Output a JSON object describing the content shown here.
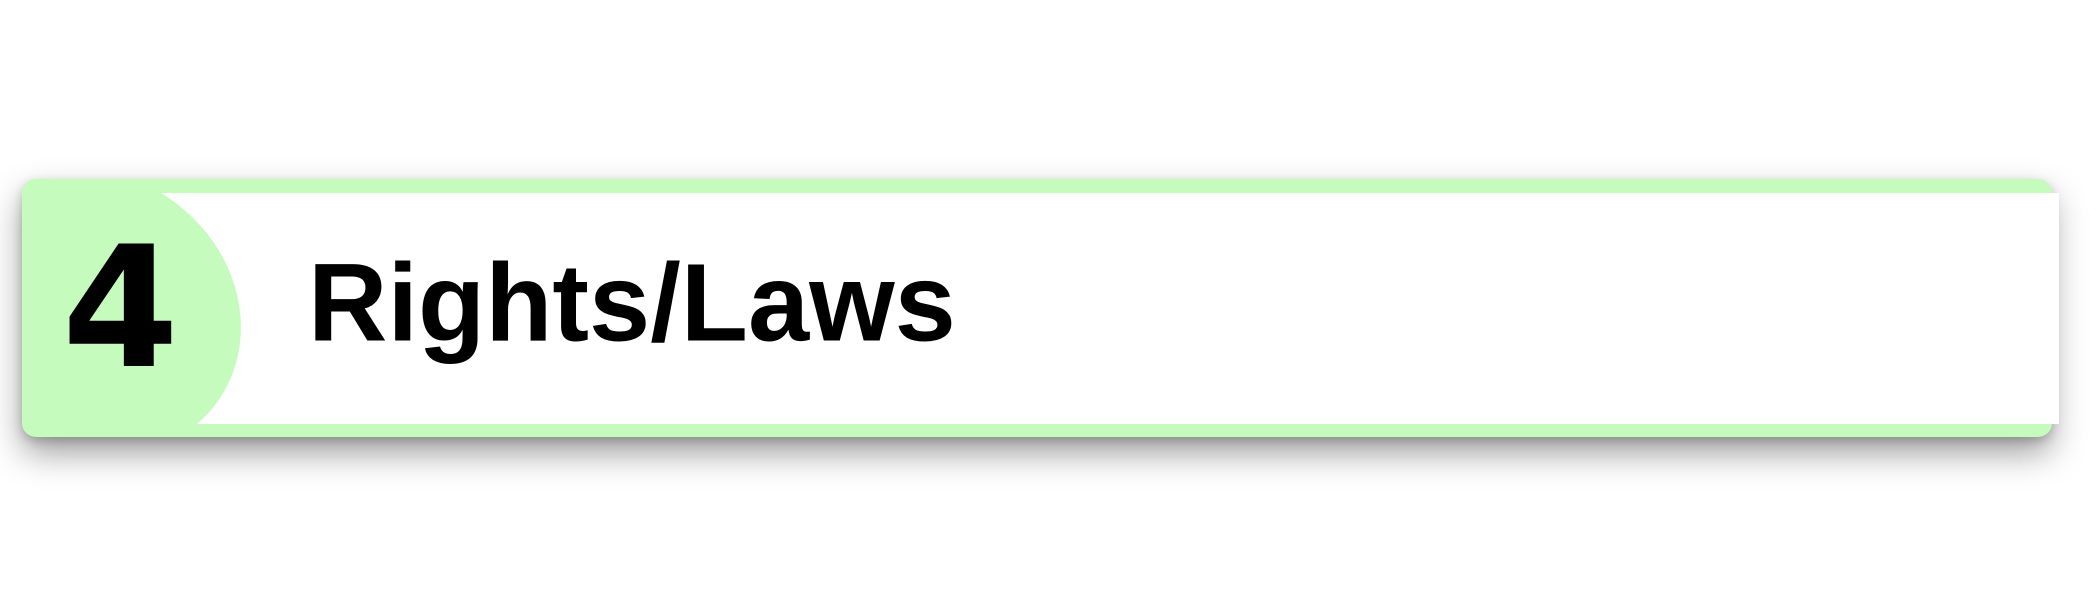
{
  "section": {
    "number": "4",
    "title": "Rights/Laws"
  },
  "colors": {
    "accent": "#c5fbbd",
    "panel": "#ffffff",
    "text": "#000000"
  }
}
